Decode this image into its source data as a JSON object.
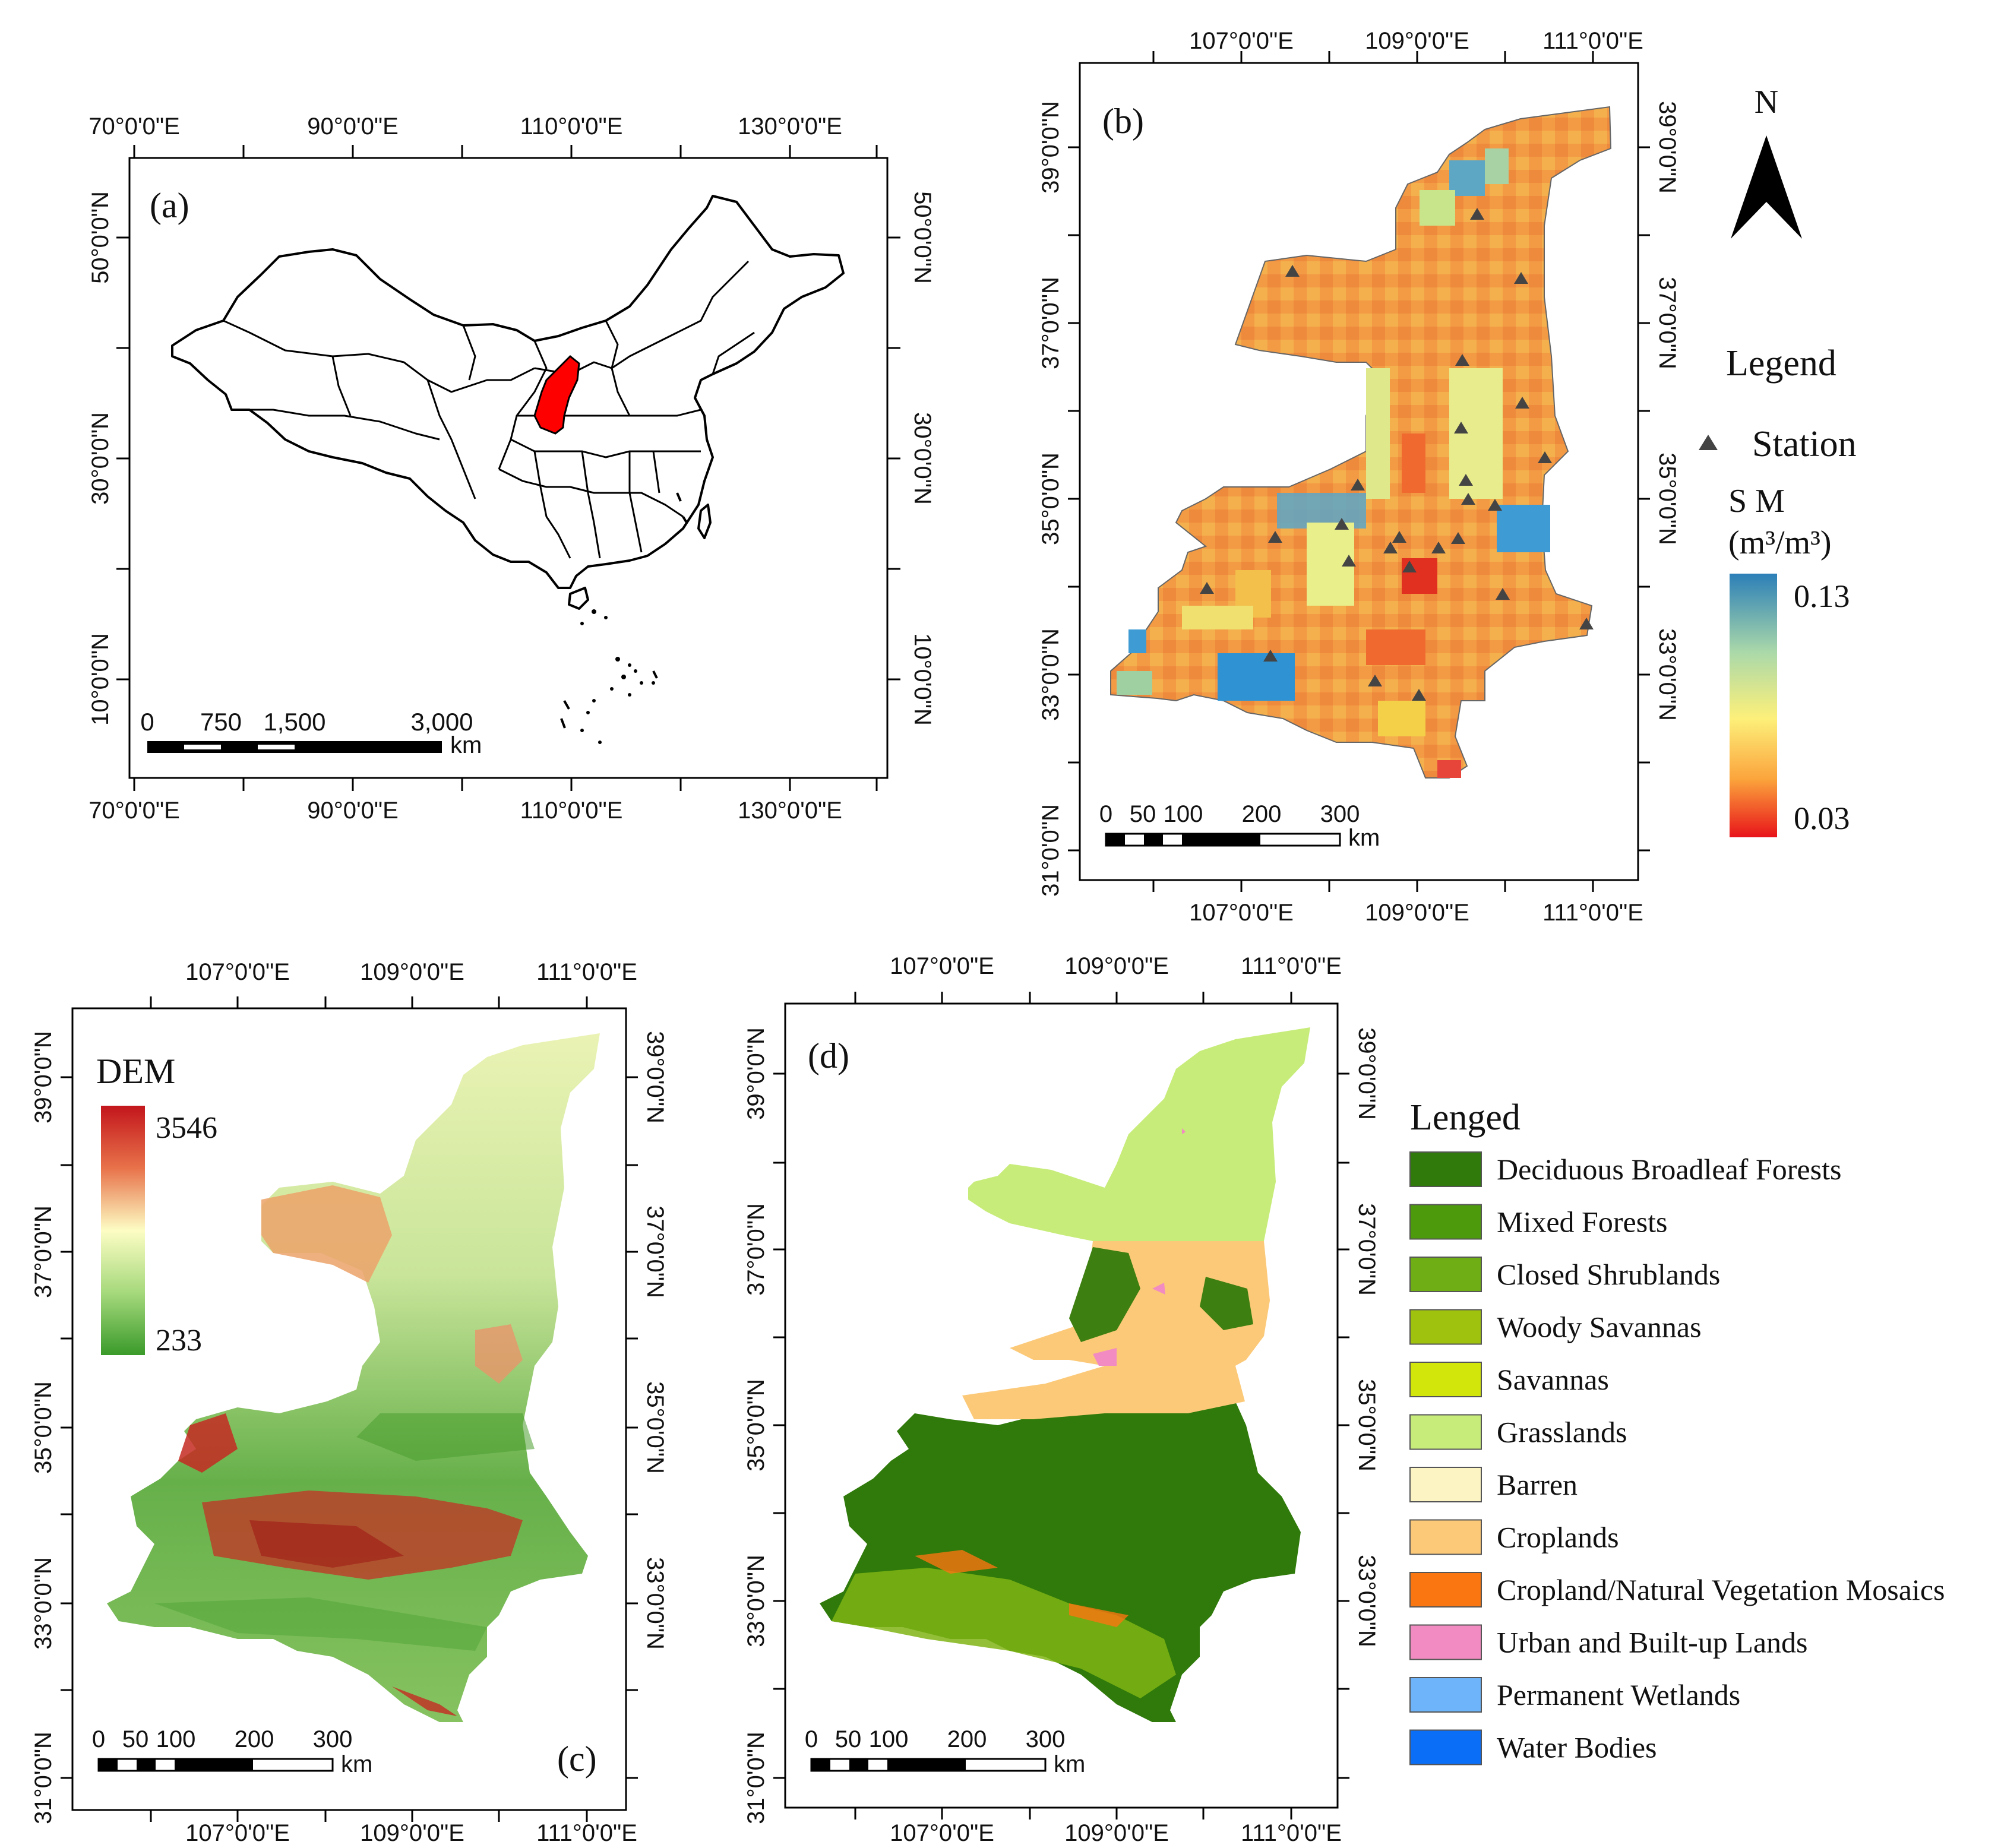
{
  "panel_a": {
    "label": "(a)",
    "top_ticks": [
      "70°0'0\"E",
      "90°0'0\"E",
      "110°0'0\"E",
      "130°0'0\"E"
    ],
    "bottom_ticks": [
      "70°0'0\"E",
      "90°0'0\"E",
      "110°0'0\"E",
      "130°0'0\"E"
    ],
    "lat_ticks": [
      "50°0'0\"N",
      "30°0'0\"N",
      "10°0'0\"N"
    ],
    "scalebar": {
      "labels": [
        "0",
        "750",
        "1,500",
        "3,000"
      ],
      "unit": "km"
    },
    "highlight_color": "#ff0000"
  },
  "panel_b": {
    "label": "(b)",
    "lon_ticks": [
      "107°0'0\"E",
      "109°0'0\"E",
      "111°0'0\"E"
    ],
    "lat_ticks": [
      "39°0'0\"N",
      "37°0'0\"N",
      "35°0'0\"N",
      "33°0'0\"N",
      "31°0'0\"N"
    ],
    "scalebar": {
      "labels": [
        "0",
        "50",
        "100",
        "200",
        "300"
      ],
      "unit": "km"
    },
    "north": "N",
    "legend_title": "Legend",
    "station_label": "Station",
    "sm_title": "S M",
    "sm_unit": "(m³/m³)",
    "sm_max": "0.13",
    "sm_min": "0.03"
  },
  "panel_c": {
    "label": "(c)",
    "lon_ticks": [
      "107°0'0\"E",
      "109°0'0\"E",
      "111°0'0\"E"
    ],
    "lat_ticks": [
      "39°0'0\"N",
      "37°0'0\"N",
      "35°0'0\"N",
      "33°0'0\"N",
      "31°0'0\"N"
    ],
    "dem_title": "DEM",
    "dem_max": "3546",
    "dem_min": "233",
    "scalebar": {
      "labels": [
        "0",
        "50",
        "100",
        "200",
        "300"
      ],
      "unit": "km"
    }
  },
  "panel_d": {
    "label": "(d)",
    "lon_ticks": [
      "107°0'0\"E",
      "109°0'0\"E",
      "111°0'0\"E"
    ],
    "lat_ticks": [
      "39°0'0\"N",
      "37°0'0\"N",
      "35°0'0\"N",
      "33°0'0\"N",
      "31°0'0\"N"
    ],
    "scalebar": {
      "labels": [
        "0",
        "50",
        "100",
        "200",
        "300"
      ],
      "unit": "km"
    },
    "legend_title": "Lenged",
    "classes": [
      {
        "name": "Deciduous Broadleaf Forests",
        "color": "#2f7a0a"
      },
      {
        "name": "Mixed Forests",
        "color": "#4e9a0d"
      },
      {
        "name": "Closed Shrublands",
        "color": "#6fae14"
      },
      {
        "name": "Woody Savannas",
        "color": "#9fc20e"
      },
      {
        "name": "Savannas",
        "color": "#d3e60b"
      },
      {
        "name": "Grasslands",
        "color": "#c7ec7a"
      },
      {
        "name": "Barren",
        "color": "#fdf4c3"
      },
      {
        "name": "Croplands",
        "color": "#fbc978"
      },
      {
        "name": "Cropland/Natural Vegetation Mosaics",
        "color": "#fa7610"
      },
      {
        "name": "Urban and Built-up Lands",
        "color": "#f28bc1"
      },
      {
        "name": "Permanent Wetlands",
        "color": "#6eb4fa"
      },
      {
        "name": "Water Bodies",
        "color": "#0b6ef7"
      }
    ]
  }
}
